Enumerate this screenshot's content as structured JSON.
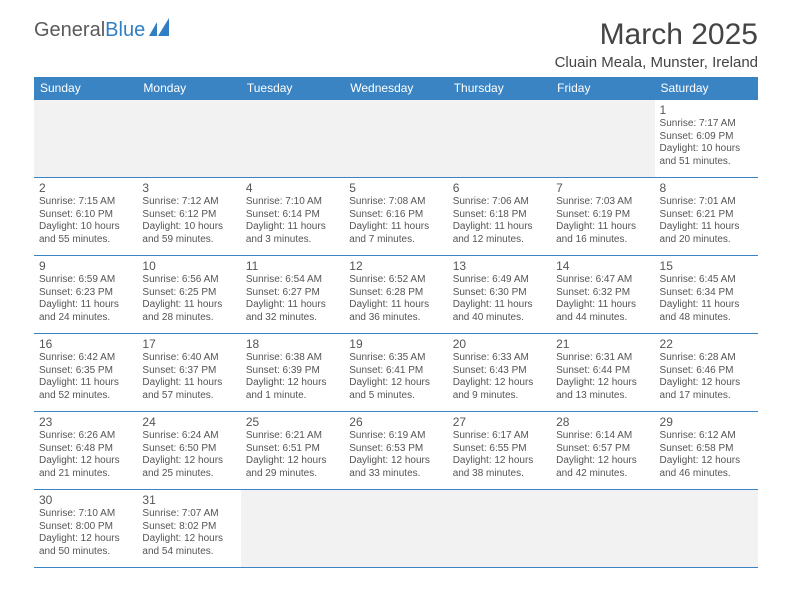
{
  "logo": {
    "text1": "General",
    "text2": "Blue"
  },
  "title": "March 2025",
  "location": "Cluain Meala, Munster, Ireland",
  "colors": {
    "header_bg": "#3a84c4",
    "header_text": "#ffffff",
    "border": "#3a84c4",
    "empty_bg": "#f2f2f2",
    "text": "#555555"
  },
  "day_headers": [
    "Sunday",
    "Monday",
    "Tuesday",
    "Wednesday",
    "Thursday",
    "Friday",
    "Saturday"
  ],
  "weeks": [
    [
      null,
      null,
      null,
      null,
      null,
      null,
      {
        "n": "1",
        "sr": "7:17 AM",
        "ss": "6:09 PM",
        "dl": "10 hours and 51 minutes."
      }
    ],
    [
      {
        "n": "2",
        "sr": "7:15 AM",
        "ss": "6:10 PM",
        "dl": "10 hours and 55 minutes."
      },
      {
        "n": "3",
        "sr": "7:12 AM",
        "ss": "6:12 PM",
        "dl": "10 hours and 59 minutes."
      },
      {
        "n": "4",
        "sr": "7:10 AM",
        "ss": "6:14 PM",
        "dl": "11 hours and 3 minutes."
      },
      {
        "n": "5",
        "sr": "7:08 AM",
        "ss": "6:16 PM",
        "dl": "11 hours and 7 minutes."
      },
      {
        "n": "6",
        "sr": "7:06 AM",
        "ss": "6:18 PM",
        "dl": "11 hours and 12 minutes."
      },
      {
        "n": "7",
        "sr": "7:03 AM",
        "ss": "6:19 PM",
        "dl": "11 hours and 16 minutes."
      },
      {
        "n": "8",
        "sr": "7:01 AM",
        "ss": "6:21 PM",
        "dl": "11 hours and 20 minutes."
      }
    ],
    [
      {
        "n": "9",
        "sr": "6:59 AM",
        "ss": "6:23 PM",
        "dl": "11 hours and 24 minutes."
      },
      {
        "n": "10",
        "sr": "6:56 AM",
        "ss": "6:25 PM",
        "dl": "11 hours and 28 minutes."
      },
      {
        "n": "11",
        "sr": "6:54 AM",
        "ss": "6:27 PM",
        "dl": "11 hours and 32 minutes."
      },
      {
        "n": "12",
        "sr": "6:52 AM",
        "ss": "6:28 PM",
        "dl": "11 hours and 36 minutes."
      },
      {
        "n": "13",
        "sr": "6:49 AM",
        "ss": "6:30 PM",
        "dl": "11 hours and 40 minutes."
      },
      {
        "n": "14",
        "sr": "6:47 AM",
        "ss": "6:32 PM",
        "dl": "11 hours and 44 minutes."
      },
      {
        "n": "15",
        "sr": "6:45 AM",
        "ss": "6:34 PM",
        "dl": "11 hours and 48 minutes."
      }
    ],
    [
      {
        "n": "16",
        "sr": "6:42 AM",
        "ss": "6:35 PM",
        "dl": "11 hours and 52 minutes."
      },
      {
        "n": "17",
        "sr": "6:40 AM",
        "ss": "6:37 PM",
        "dl": "11 hours and 57 minutes."
      },
      {
        "n": "18",
        "sr": "6:38 AM",
        "ss": "6:39 PM",
        "dl": "12 hours and 1 minute."
      },
      {
        "n": "19",
        "sr": "6:35 AM",
        "ss": "6:41 PM",
        "dl": "12 hours and 5 minutes."
      },
      {
        "n": "20",
        "sr": "6:33 AM",
        "ss": "6:43 PM",
        "dl": "12 hours and 9 minutes."
      },
      {
        "n": "21",
        "sr": "6:31 AM",
        "ss": "6:44 PM",
        "dl": "12 hours and 13 minutes."
      },
      {
        "n": "22",
        "sr": "6:28 AM",
        "ss": "6:46 PM",
        "dl": "12 hours and 17 minutes."
      }
    ],
    [
      {
        "n": "23",
        "sr": "6:26 AM",
        "ss": "6:48 PM",
        "dl": "12 hours and 21 minutes."
      },
      {
        "n": "24",
        "sr": "6:24 AM",
        "ss": "6:50 PM",
        "dl": "12 hours and 25 minutes."
      },
      {
        "n": "25",
        "sr": "6:21 AM",
        "ss": "6:51 PM",
        "dl": "12 hours and 29 minutes."
      },
      {
        "n": "26",
        "sr": "6:19 AM",
        "ss": "6:53 PM",
        "dl": "12 hours and 33 minutes."
      },
      {
        "n": "27",
        "sr": "6:17 AM",
        "ss": "6:55 PM",
        "dl": "12 hours and 38 minutes."
      },
      {
        "n": "28",
        "sr": "6:14 AM",
        "ss": "6:57 PM",
        "dl": "12 hours and 42 minutes."
      },
      {
        "n": "29",
        "sr": "6:12 AM",
        "ss": "6:58 PM",
        "dl": "12 hours and 46 minutes."
      }
    ],
    [
      {
        "n": "30",
        "sr": "7:10 AM",
        "ss": "8:00 PM",
        "dl": "12 hours and 50 minutes."
      },
      {
        "n": "31",
        "sr": "7:07 AM",
        "ss": "8:02 PM",
        "dl": "12 hours and 54 minutes."
      },
      null,
      null,
      null,
      null,
      null
    ]
  ],
  "labels": {
    "sunrise": "Sunrise: ",
    "sunset": "Sunset: ",
    "daylight": "Daylight: "
  }
}
